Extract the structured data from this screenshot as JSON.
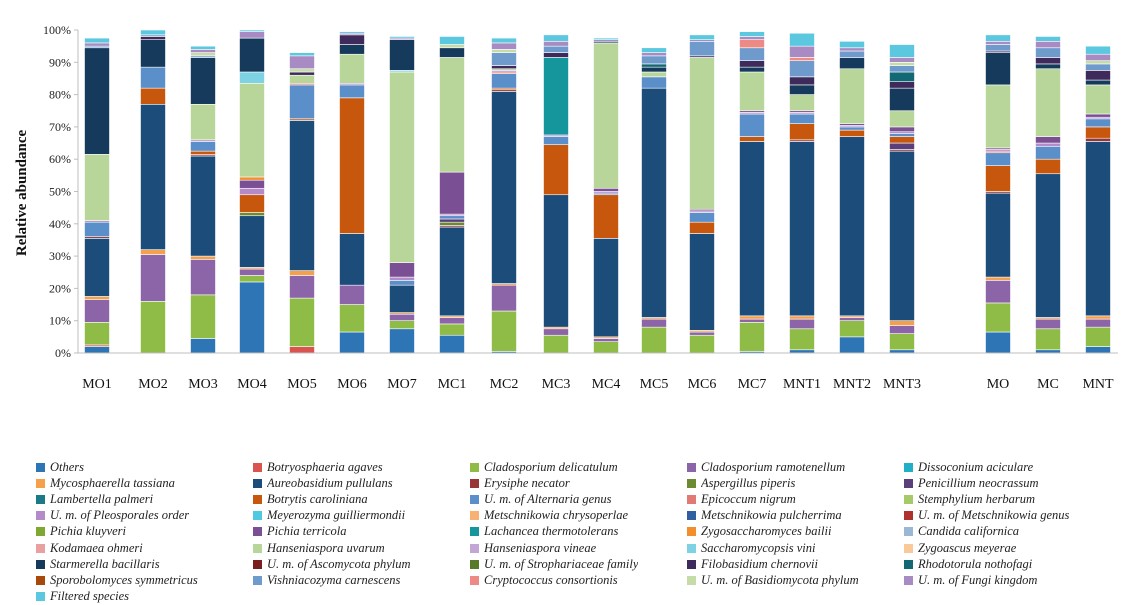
{
  "chart_data": {
    "type": "bar",
    "stacked": true,
    "title": "",
    "xlabel": "",
    "ylabel": "Relative abundance",
    "ylim": [
      0,
      100
    ],
    "yticks": [
      "0%",
      "10%",
      "20%",
      "30%",
      "40%",
      "50%",
      "60%",
      "70%",
      "80%",
      "90%",
      "100%"
    ],
    "grid": false,
    "legend_position": "bottom",
    "categories": [
      "MO1",
      "MO2",
      "MO3",
      "MO4",
      "MO5",
      "MO6",
      "MO7",
      "MC1",
      "MC2",
      "MC3",
      "MC4",
      "MC5",
      "MC6",
      "MC7",
      "MNT1",
      "MNT2",
      "MNT3",
      "MO",
      "MC",
      "MNT"
    ],
    "series": [
      {
        "name": "Others",
        "color": "#2e75b6",
        "values": [
          2,
          0,
          4.5,
          22,
          0,
          6.5,
          7.5,
          5.5,
          0.5,
          0,
          0,
          0,
          0,
          0.5,
          1,
          5,
          1,
          6.5,
          1,
          2
        ]
      },
      {
        "name": "Botryosphaeria agaves",
        "color": "#d9534f",
        "values": [
          0.5,
          0,
          0,
          0,
          2,
          0,
          0,
          0,
          0,
          0,
          0,
          0,
          0,
          0,
          0,
          0,
          0,
          0,
          0,
          0
        ]
      },
      {
        "name": "Cladosporium delicatulum",
        "color": "#8fbb47",
        "values": [
          7,
          16,
          13.5,
          2,
          15,
          8.5,
          2.5,
          3.5,
          12.5,
          5.5,
          3.5,
          8,
          5.5,
          9,
          6.5,
          5,
          5,
          9,
          6.5,
          6
        ]
      },
      {
        "name": "Cladosporium ramotenellum",
        "color": "#8c64a8",
        "values": [
          7,
          14.5,
          11,
          2,
          7,
          6,
          2,
          2,
          8,
          2,
          1,
          2.5,
          1,
          1,
          3,
          1,
          2.5,
          7,
          3,
          2.5
        ]
      },
      {
        "name": "Dissoconium aciculare",
        "color": "#1fb0c8",
        "values": [
          0,
          0,
          0,
          0,
          0,
          0,
          0,
          0,
          0,
          0,
          0,
          0,
          0,
          0,
          0,
          0,
          0,
          0,
          0,
          0
        ]
      },
      {
        "name": "Mycosphaerella tassiana",
        "color": "#f5a04b",
        "values": [
          1,
          1.5,
          1,
          0.5,
          1.5,
          0,
          0.5,
          0.5,
          0.5,
          0.5,
          0.5,
          0.5,
          0.5,
          1,
          1,
          0.5,
          1.5,
          1,
          0.5,
          1
        ]
      },
      {
        "name": "Aureobasidium pullulans",
        "color": "#1c4d7a",
        "values": [
          18,
          45,
          31,
          16,
          46.5,
          16,
          8.5,
          27.5,
          59.5,
          41,
          30.5,
          71,
          30,
          54,
          54,
          55.5,
          52.5,
          26,
          44.5,
          54
        ]
      },
      {
        "name": "Erysiphe necator",
        "color": "#963636",
        "values": [
          0.5,
          0,
          0.5,
          0,
          0,
          0,
          0,
          0.5,
          0.5,
          0,
          0,
          0,
          0,
          0,
          0.5,
          0,
          0.5,
          0.5,
          0,
          1
        ]
      },
      {
        "name": "Aspergillus piperis",
        "color": "#6b8a31",
        "values": [
          0,
          0,
          0,
          1,
          0,
          0,
          0,
          1,
          0,
          0,
          0,
          0,
          0,
          0,
          0,
          0,
          0,
          0,
          0,
          0
        ]
      },
      {
        "name": "Penicillium neocrassum",
        "color": "#5b3f7a",
        "values": [
          0,
          0,
          0,
          0,
          0,
          0,
          0,
          1,
          0,
          0,
          0,
          0,
          0,
          0,
          0,
          0,
          2,
          0,
          0,
          0
        ]
      },
      {
        "name": "Lambertella palmeri",
        "color": "#1b7a85",
        "values": [
          0,
          0,
          0,
          0,
          0,
          0,
          0,
          0,
          0,
          0,
          0,
          0,
          0,
          0,
          0,
          0,
          0,
          0,
          0,
          0
        ]
      },
      {
        "name": "Botrytis caroliniana",
        "color": "#c8570e",
        "values": [
          0,
          5,
          1,
          5.5,
          0.5,
          42,
          0,
          0,
          0.5,
          15.5,
          13.5,
          0,
          3.5,
          1.5,
          5,
          2,
          2,
          8,
          4.5,
          3.5
        ]
      },
      {
        "name": "U. m. of Alternaria genus",
        "color": "#5b8fc9",
        "values": [
          4.5,
          6.5,
          3,
          0,
          10.5,
          4,
          1.5,
          1,
          4.5,
          2.5,
          0.5,
          3.5,
          3,
          7,
          3,
          1,
          1,
          4,
          4,
          2.5
        ]
      },
      {
        "name": "Epicoccum nigrum",
        "color": "#e07a73",
        "values": [
          0,
          0,
          0,
          0,
          0.5,
          0,
          0,
          0,
          0.5,
          0,
          0,
          0,
          0,
          0,
          0,
          0,
          0,
          0.5,
          0,
          0
        ]
      },
      {
        "name": "Stemphylium herbarum",
        "color": "#a6c96a",
        "values": [
          0,
          0,
          0,
          0,
          0,
          0,
          0,
          0,
          0,
          0,
          0,
          0,
          0,
          0,
          0,
          0,
          0,
          0,
          0,
          0
        ]
      },
      {
        "name": "U. m. of Pleosporales order",
        "color": "#b48bc8",
        "values": [
          0.5,
          0,
          0.5,
          2,
          0,
          0.5,
          1,
          0.5,
          0.5,
          0.5,
          0.5,
          0,
          0.5,
          0.5,
          0.5,
          0.5,
          0.5,
          0.5,
          1,
          0.5
        ]
      },
      {
        "name": "Meyerozyma guilliermondii",
        "color": "#4fc9df",
        "values": [
          0,
          0,
          0,
          0,
          0,
          0,
          0,
          0,
          0,
          0,
          0,
          0,
          0,
          0,
          0,
          0,
          0,
          0,
          0,
          0
        ]
      },
      {
        "name": "Metschnikowia chrysoperlae",
        "color": "#f7b173",
        "values": [
          0,
          0,
          0,
          0,
          0,
          0,
          0,
          0,
          0,
          0,
          0,
          0,
          0,
          0,
          0,
          0,
          0,
          0,
          0,
          0
        ]
      },
      {
        "name": "Metschnikowia pulcherrima",
        "color": "#2f5fa0",
        "values": [
          0,
          0,
          0,
          0,
          0,
          0,
          0,
          0,
          0,
          0,
          0,
          0,
          0,
          0,
          0,
          0,
          0,
          0,
          0,
          0
        ]
      },
      {
        "name": "U. m. of Metschnikowia genus",
        "color": "#b03030",
        "values": [
          0,
          0,
          0,
          0,
          0,
          0,
          0,
          0,
          0,
          0,
          0,
          0,
          0,
          0,
          0,
          0,
          0,
          0,
          0,
          0
        ]
      },
      {
        "name": "Pichia kluyveri",
        "color": "#7fa832",
        "values": [
          0,
          0,
          0,
          0,
          0,
          0,
          0,
          0,
          0,
          0,
          0,
          0,
          0,
          0,
          0,
          0,
          0,
          0,
          0,
          0
        ]
      },
      {
        "name": "Pichia terricola",
        "color": "#7a4f94",
        "values": [
          0,
          0,
          0,
          2.5,
          0,
          0,
          4.5,
          13,
          0,
          0,
          1,
          0,
          0.5,
          0.5,
          0.5,
          0.5,
          1.5,
          0.5,
          2,
          1
        ]
      },
      {
        "name": "Lachancea thermotolerans",
        "color": "#14969c",
        "values": [
          0,
          0,
          0,
          0,
          0,
          0,
          0,
          0,
          0,
          24,
          0,
          0,
          0,
          0,
          0,
          0,
          0,
          0,
          0,
          0
        ]
      },
      {
        "name": "Zygosaccharomyces bailii",
        "color": "#f28e2b",
        "values": [
          0,
          0,
          0,
          1,
          0,
          0,
          0,
          0,
          0,
          0,
          0,
          0,
          0,
          0,
          0,
          0,
          0,
          0,
          0,
          0
        ]
      },
      {
        "name": "Candida californica",
        "color": "#9ab7d6",
        "values": [
          0,
          0,
          0,
          0,
          0,
          0,
          0,
          0,
          0,
          0,
          0,
          0,
          0,
          0,
          0,
          0,
          0,
          0,
          0,
          0
        ]
      },
      {
        "name": "Kodamaea ohmeri",
        "color": "#e8a0a0",
        "values": [
          0,
          0,
          0,
          0,
          0,
          0,
          0,
          0,
          0,
          0,
          0,
          0,
          0,
          0,
          0,
          0,
          0,
          0,
          0,
          0
        ]
      },
      {
        "name": "Hanseniaspora uvarum",
        "color": "#b9d69a",
        "values": [
          20.5,
          0,
          11,
          29,
          2.5,
          9,
          59,
          35.5,
          0.5,
          0,
          45,
          1.5,
          47,
          12,
          5,
          17,
          5,
          19.5,
          21,
          9
        ]
      },
      {
        "name": "Hanseniaspora vineae",
        "color": "#c3a6d6",
        "values": [
          0,
          0,
          0,
          0,
          0,
          0,
          0,
          0,
          0,
          0,
          0,
          0,
          0,
          0,
          0,
          0,
          0,
          0,
          0,
          0
        ]
      },
      {
        "name": "Saccharomycopsis vini",
        "color": "#7dd3e3",
        "values": [
          0,
          0,
          0,
          3.5,
          0,
          0,
          0.5,
          0,
          0,
          0,
          0,
          0,
          0,
          0,
          0,
          0,
          0,
          0,
          0,
          0
        ]
      },
      {
        "name": "Zygoascus meyerae",
        "color": "#f9c99a",
        "values": [
          0,
          0,
          0,
          0,
          0,
          0,
          0,
          0,
          0,
          0,
          0,
          0,
          0,
          0,
          0,
          0,
          0,
          0,
          0,
          0
        ]
      },
      {
        "name": "Starmerella bacillaris",
        "color": "#163a5c",
        "values": [
          33,
          8.5,
          14.5,
          10.5,
          0,
          3,
          9.5,
          3,
          0,
          0,
          0.5,
          1.5,
          0,
          1.5,
          3,
          3.5,
          7,
          10,
          1.5,
          1.5
        ]
      },
      {
        "name": "U. m. of Ascomycota phylum",
        "color": "#7a1f1f",
        "values": [
          0,
          0,
          0,
          0,
          0,
          0,
          0,
          0,
          0,
          0,
          0,
          0,
          0,
          0,
          0,
          0,
          0,
          0,
          0,
          0
        ]
      },
      {
        "name": "U. m. of Strophariaceae family",
        "color": "#567a28",
        "values": [
          0,
          0,
          0,
          0,
          0,
          0,
          0,
          0,
          0,
          0,
          0,
          0,
          0,
          0,
          0,
          0,
          0,
          0,
          0,
          0
        ]
      },
      {
        "name": "Filobasidium chernovii",
        "color": "#3f2a5c",
        "values": [
          0,
          1,
          0,
          0,
          1,
          3,
          0,
          0,
          1,
          1.5,
          0,
          0,
          0.5,
          2,
          2.5,
          0,
          2,
          0.5,
          2,
          3
        ]
      },
      {
        "name": "Rhodotorula nothofagi",
        "color": "#126873",
        "values": [
          0,
          0,
          0,
          0,
          0,
          0,
          0,
          0,
          0,
          0,
          0,
          1,
          0,
          0,
          0,
          0,
          3,
          0,
          0,
          0
        ]
      },
      {
        "name": "Sporobolomyces symmetricus",
        "color": "#a8480b",
        "values": [
          0,
          0,
          0,
          0,
          0,
          0,
          0,
          0,
          0,
          0,
          0,
          0,
          0,
          0,
          0,
          0,
          0,
          0,
          0,
          0
        ]
      },
      {
        "name": "Vishniacozyma carnescens",
        "color": "#6f9bcc",
        "values": [
          0.5,
          0.5,
          0.5,
          0,
          0,
          0,
          0,
          0,
          4,
          2,
          0,
          2.5,
          4.5,
          4,
          5,
          2,
          2,
          2,
          3,
          2
        ]
      },
      {
        "name": "Cryptococcus consortionis",
        "color": "#ed8a84",
        "values": [
          0,
          0,
          0,
          0,
          0,
          0,
          0,
          0,
          0,
          0,
          0,
          0,
          0,
          2.5,
          1,
          0,
          0,
          0,
          0,
          0
        ]
      },
      {
        "name": "U. m. of Basidiomycota phylum",
        "color": "#c5dca9",
        "values": [
          0,
          0,
          1,
          0,
          1,
          0,
          0,
          1,
          1,
          0,
          0,
          0,
          0,
          0,
          0,
          0,
          1,
          0,
          0,
          1
        ]
      },
      {
        "name": "U. m. of Fungi kingdom",
        "color": "#a78bc2",
        "values": [
          1,
          0,
          1,
          2,
          4,
          0.5,
          0.5,
          0,
          2,
          1.5,
          0.5,
          1,
          0.5,
          1,
          3.5,
          1,
          1.5,
          1,
          2,
          2
        ]
      },
      {
        "name": "Filtered species",
        "color": "#5cc8e0",
        "values": [
          1.5,
          1.5,
          1,
          0.5,
          1,
          0.5,
          0.5,
          2.5,
          1.5,
          2,
          0.5,
          1.5,
          1.5,
          1.5,
          4,
          2,
          4,
          2,
          1.5,
          2.5
        ]
      }
    ]
  }
}
